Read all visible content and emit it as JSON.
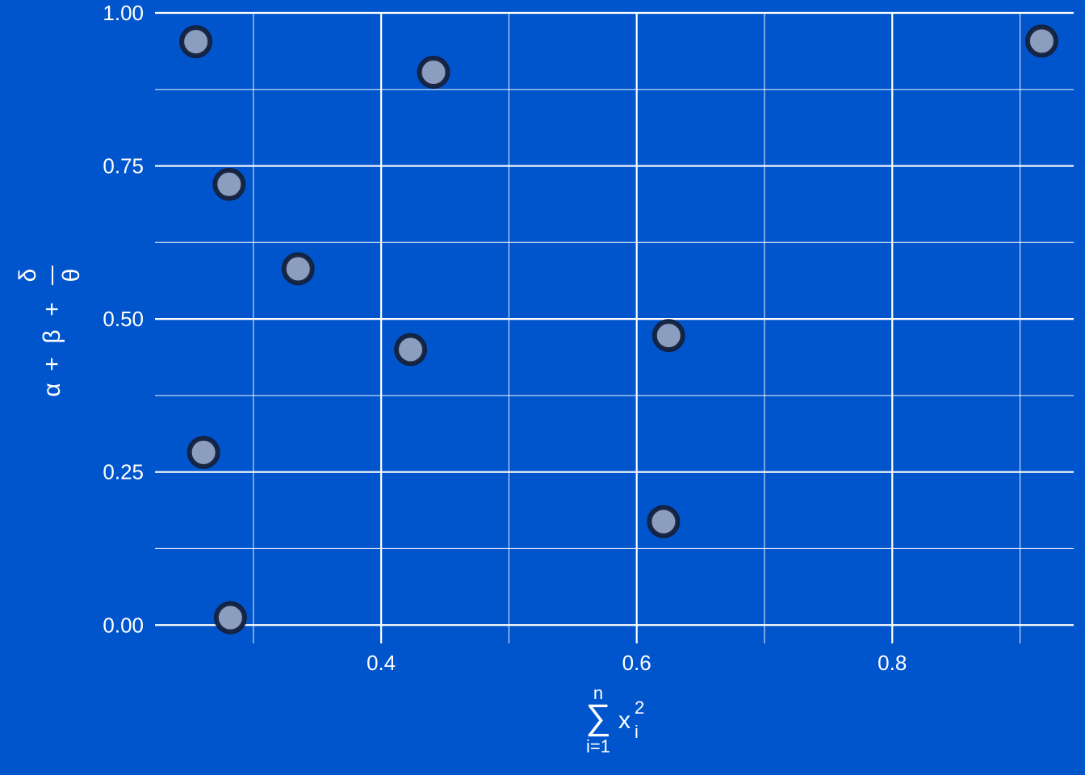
{
  "chart_data": {
    "type": "scatter",
    "title": "",
    "xlabel": {
      "sum_symbol": "∑",
      "upper_limit": "n",
      "lower_limit": "i=1",
      "base": "x",
      "subscript": "i",
      "superscript": "2"
    },
    "ylabel": {
      "alpha": "α",
      "beta": "β",
      "plus": "+",
      "numerator": "δ",
      "denominator": "θ"
    },
    "xlim": [
      0.223,
      0.942
    ],
    "ylim": [
      -0.03,
      1.0
    ],
    "x_ticks": [
      {
        "value": 0.4,
        "label": "0.4"
      },
      {
        "value": 0.6,
        "label": "0.6"
      },
      {
        "value": 0.8,
        "label": "0.8"
      }
    ],
    "y_ticks": [
      {
        "value": 0.0,
        "label": "0.00"
      },
      {
        "value": 0.25,
        "label": "0.25"
      },
      {
        "value": 0.5,
        "label": "0.50"
      },
      {
        "value": 0.75,
        "label": "0.75"
      },
      {
        "value": 1.0,
        "label": "1.00"
      }
    ],
    "x_minor": [
      0.3,
      0.5,
      0.7,
      0.9
    ],
    "y_minor": [
      0.125,
      0.375,
      0.625,
      0.875
    ],
    "grid": true,
    "colors": {
      "background": "#0055CC",
      "grid": "#FFFFFF",
      "point_fill": "#8C9EC0",
      "point_stroke": "#13213D"
    },
    "points": [
      {
        "x": 0.255,
        "y": 0.953
      },
      {
        "x": 0.261,
        "y": 0.282
      },
      {
        "x": 0.281,
        "y": 0.72
      },
      {
        "x": 0.282,
        "y": 0.012
      },
      {
        "x": 0.335,
        "y": 0.582
      },
      {
        "x": 0.423,
        "y": 0.45
      },
      {
        "x": 0.441,
        "y": 0.903
      },
      {
        "x": 0.621,
        "y": 0.169
      },
      {
        "x": 0.625,
        "y": 0.473
      },
      {
        "x": 0.917,
        "y": 0.954
      }
    ]
  }
}
